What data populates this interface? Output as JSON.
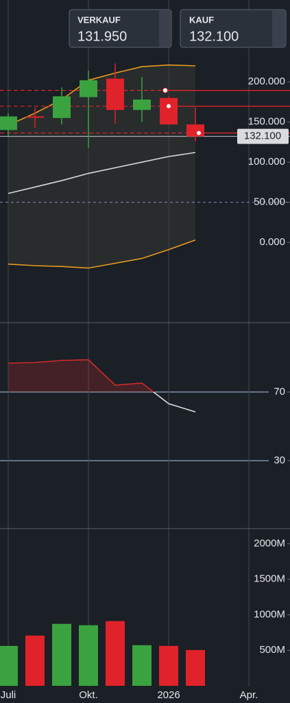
{
  "header": {
    "sell": {
      "label": "VERKAUF",
      "value": "131.950"
    },
    "buy": {
      "label": "KAUF",
      "value": "132.100"
    }
  },
  "chart_data": [
    {
      "type": "candlestick",
      "open": [
        140,
        157,
        155,
        181,
        204,
        165,
        180,
        147,
        null,
        null
      ],
      "high": [
        161,
        168,
        193,
        214,
        223,
        206,
        182,
        168,
        null,
        null
      ],
      "low": [
        131,
        143,
        147,
        118,
        148,
        150,
        147,
        126,
        null,
        null
      ],
      "close": [
        157,
        156,
        182,
        202,
        165,
        178,
        147,
        132,
        null,
        null
      ],
      "up_color": "#3aa33f",
      "down_color": "#e0232a",
      "series": [
        {
          "name": "upper",
          "color": "#e89a1f",
          "values": [
            146,
            161,
            178,
            202,
            211,
            219,
            221,
            220,
            null,
            null
          ]
        },
        {
          "name": "middle",
          "color": "#d9d9d9",
          "values": [
            61,
            69,
            77,
            86,
            93,
            100,
            107,
            112,
            null,
            null
          ]
        },
        {
          "name": "lower",
          "color": "#e89a1f",
          "values": [
            -27,
            -29,
            -30,
            -32,
            -26,
            -20,
            -9,
            3,
            null,
            null
          ]
        }
      ],
      "levels": [
        189.4,
        169.7,
        136.3
      ],
      "level_color": "#e0232a",
      "dashed_level": 50,
      "last_price": {
        "value": 132.1,
        "label": "132.100"
      },
      "ylim": [
        -100,
        302
      ],
      "yticks": [
        {
          "value": 0,
          "label": "0.000"
        },
        {
          "value": 50,
          "label": "50.000"
        },
        {
          "value": 100,
          "label": "100.000"
        },
        {
          "value": 150,
          "label": "150.000"
        },
        {
          "value": 200,
          "label": "200.000"
        }
      ]
    },
    {
      "type": "line",
      "values": [
        86.8,
        87.2,
        88.4,
        88.8,
        74,
        75.2,
        63.2,
        58.4,
        null,
        null
      ],
      "color_above": "#d02a2a",
      "color_below": "#dcdcdc",
      "threshold": 70,
      "ylim": [
        -9.6,
        110.4
      ],
      "yticks": [
        30,
        70
      ]
    },
    {
      "type": "bar",
      "categories": [
        "Juli",
        null,
        null,
        "Okt.",
        null,
        null,
        "2026",
        null,
        null,
        "Apr."
      ],
      "values": [
        562,
        707,
        872,
        853,
        911,
        572,
        562,
        504,
        null,
        null
      ],
      "colors": [
        "#3aa33f",
        "#e0232a",
        "#3aa33f",
        "#3aa33f",
        "#e0232a",
        "#3aa33f",
        "#e0232a",
        "#e0232a",
        null,
        null
      ],
      "ylim": [
        0,
        2212
      ],
      "yticks": [
        {
          "value": 500,
          "label": "500M"
        },
        {
          "value": 1000,
          "label": "1000M"
        },
        {
          "value": 1500,
          "label": "1500M"
        },
        {
          "value": 2000,
          "label": "2000M"
        }
      ]
    }
  ]
}
